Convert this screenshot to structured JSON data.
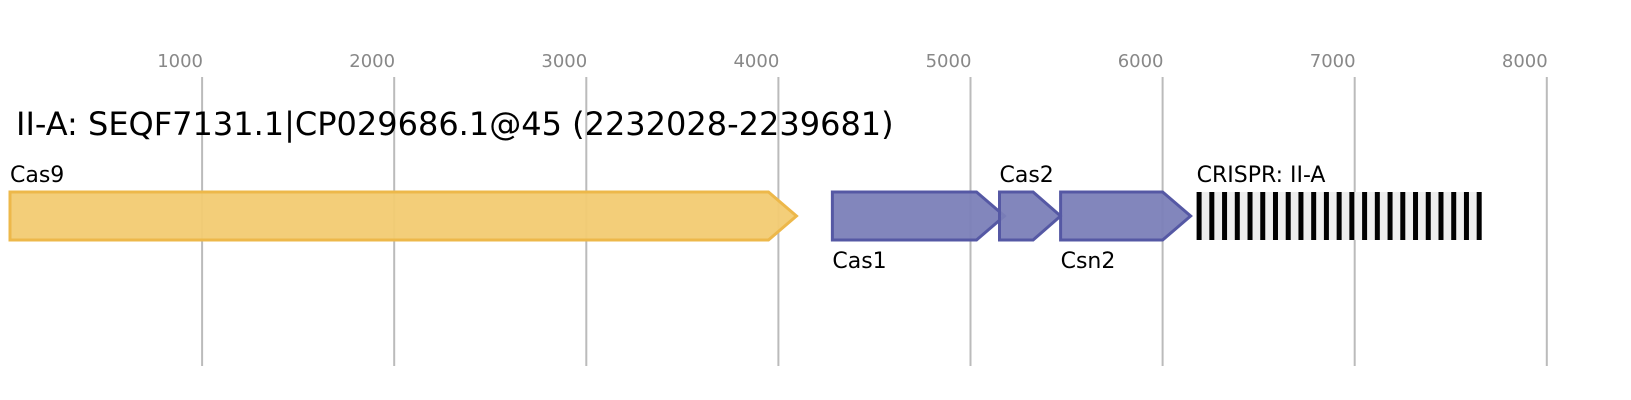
{
  "title": "II-A: SEQF7131.1|CP029686.1@45 (2232028-2239681)",
  "axis": {
    "ticks": [
      1000,
      2000,
      3000,
      4000,
      5000,
      6000,
      7000,
      8000
    ],
    "range": [
      0,
      8000
    ]
  },
  "colors": {
    "cas9_fill": "#f2cb72",
    "cas9_stroke": "#edb84a",
    "cas_fill": "#7b7fb8",
    "cas_stroke": "#5558a4",
    "repeat": "#000000",
    "spacer": "#eeeeee",
    "grid": "#bbbbbb"
  },
  "genes": [
    {
      "name": "Cas9",
      "start": 0,
      "end": 4094,
      "strand": "+",
      "label_pos": "above",
      "color": "cas9"
    },
    {
      "name": "Cas1",
      "start": 4281,
      "end": 5177,
      "strand": "+",
      "label_pos": "below",
      "color": "cas"
    },
    {
      "name": "Cas2",
      "start": 5151,
      "end": 5469,
      "strand": "+",
      "label_pos": "above",
      "color": "cas"
    },
    {
      "name": "Csn2",
      "start": 5469,
      "end": 6146,
      "strand": "+",
      "label_pos": "below",
      "color": "cas"
    }
  ],
  "crispr": {
    "label": "CRISPR: II-A",
    "start": 6177,
    "end": 7661,
    "repeats": 23
  }
}
